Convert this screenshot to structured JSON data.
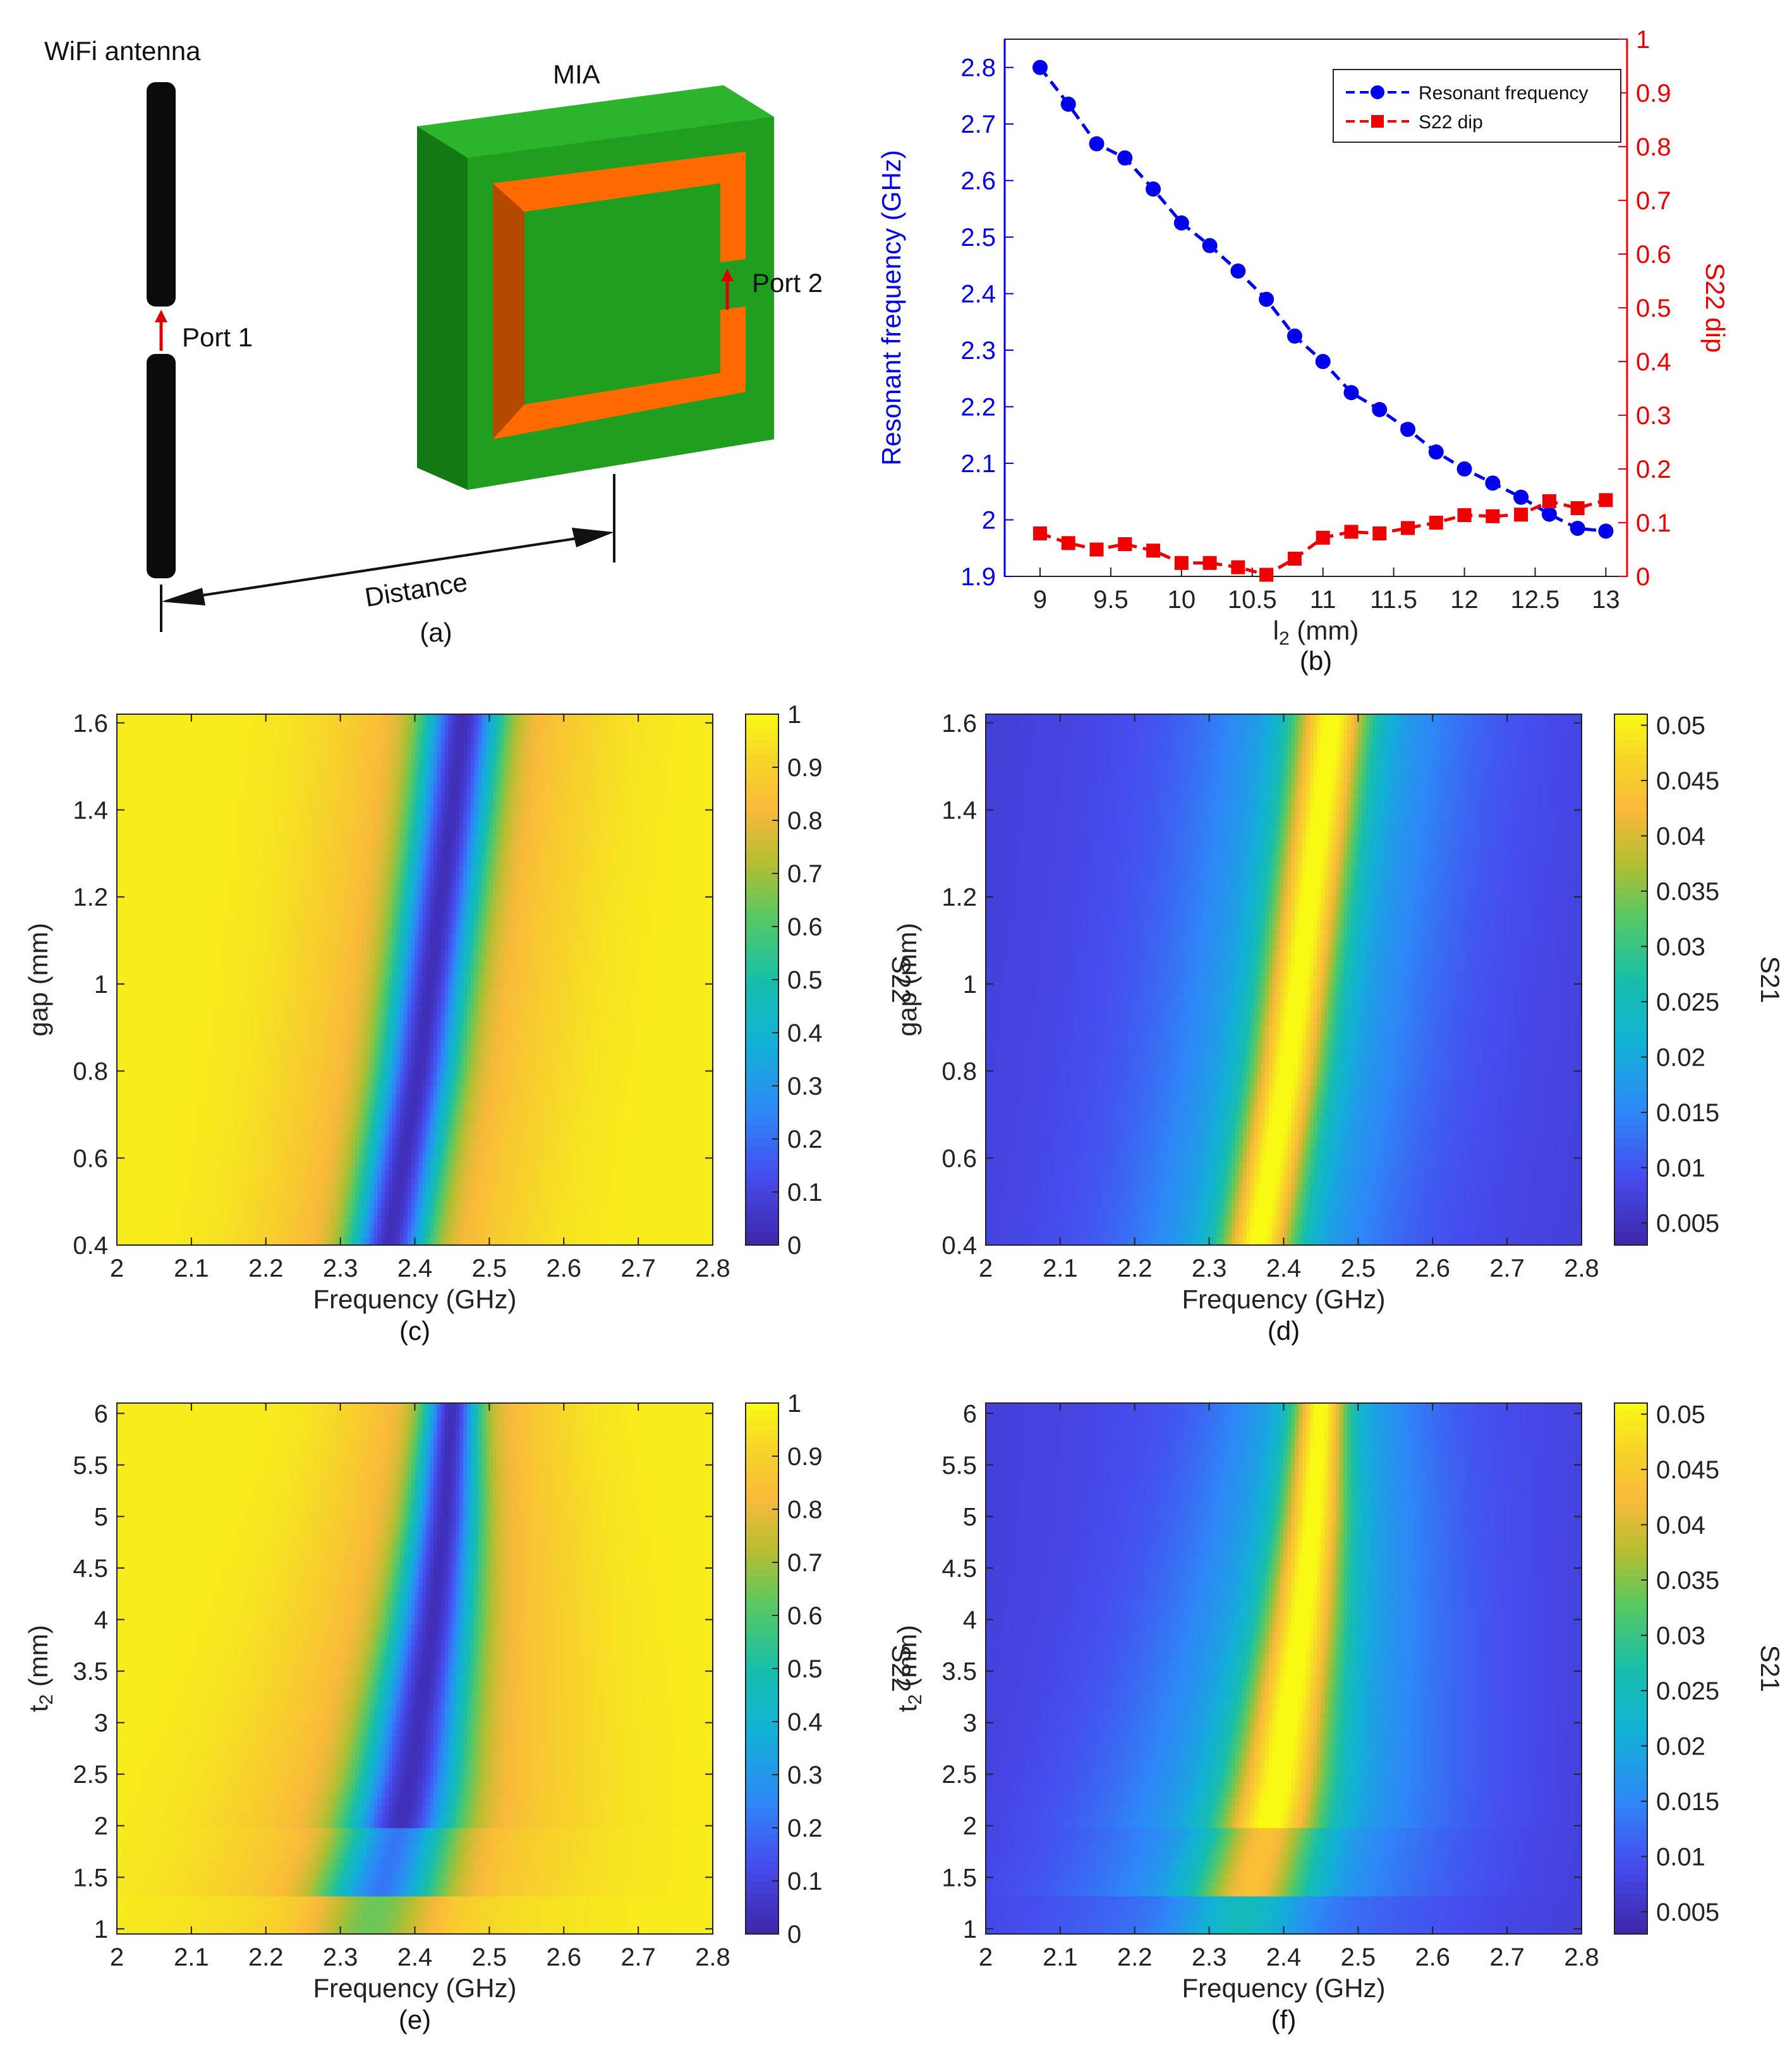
{
  "panel_a": {
    "antenna_label": "WiFi antenna",
    "mia_label": "MIA",
    "port1_label": "Port 1",
    "port2_label": "Port 2",
    "distance_label": "Distance",
    "caption": "(a)",
    "colors": {
      "antenna": "#0a0a0a",
      "substrate": "#1f9e1f",
      "substrate_side": "#0f6e0f",
      "ring": "#ff6a00",
      "ring_side": "#b34a00",
      "port_arrow": "#e00000"
    }
  },
  "chart_data": [
    {
      "id": "b",
      "type": "line",
      "caption": "(b)",
      "x": [
        9,
        9.2,
        9.4,
        9.6,
        9.8,
        10,
        10.2,
        10.4,
        10.6,
        10.8,
        11,
        11.2,
        11.4,
        11.6,
        11.8,
        12,
        12.2,
        12.4,
        12.6,
        12.8,
        13
      ],
      "xlabel_main": "l",
      "xlabel_sub": "2",
      "xlabel_unit": " (mm)",
      "xlim": [
        8.75,
        13.15
      ],
      "xticks": [
        "9",
        "9.5",
        "10",
        "10.5",
        "11",
        "11.5",
        "12",
        "12.5",
        "13"
      ],
      "ylabel_left": "Resonant frequency (GHz)",
      "ylim_left": [
        1.9,
        2.85
      ],
      "yticks_left": [
        "1.9",
        "2",
        "2.1",
        "2.2",
        "2.3",
        "2.4",
        "2.5",
        "2.6",
        "2.7",
        "2.8"
      ],
      "ylabel_right": "S22 dip",
      "ylim_right": [
        0,
        1
      ],
      "yticks_right": [
        "0",
        "0.1",
        "0.2",
        "0.3",
        "0.4",
        "0.5",
        "0.6",
        "0.7",
        "0.8",
        "0.9",
        "1"
      ],
      "legend_position": "top-right",
      "series": [
        {
          "name": "Resonant frequency",
          "axis": "left",
          "color": "#0000ee",
          "marker": "circle",
          "values": [
            2.8,
            2.735,
            2.665,
            2.64,
            2.585,
            2.525,
            2.485,
            2.44,
            2.39,
            2.325,
            2.28,
            2.225,
            2.195,
            2.16,
            2.12,
            2.09,
            2.065,
            2.04,
            2.01,
            1.985,
            1.98
          ]
        },
        {
          "name": "S22 dip",
          "axis": "right",
          "color": "#ee0000",
          "marker": "square",
          "values": [
            0.08,
            0.062,
            0.05,
            0.06,
            0.048,
            0.025,
            0.025,
            0.017,
            0.003,
            0.033,
            0.072,
            0.083,
            0.08,
            0.09,
            0.1,
            0.114,
            0.112,
            0.115,
            0.14,
            0.127,
            0.142
          ]
        }
      ]
    },
    {
      "id": "c",
      "type": "heatmap",
      "caption": "(c)",
      "xlabel": "Frequency (GHz)",
      "ylabel": "gap (mm)",
      "xlim": [
        2,
        2.8
      ],
      "ylim": [
        0.4,
        1.62
      ],
      "xticks": [
        "2",
        "2.1",
        "2.2",
        "2.3",
        "2.4",
        "2.5",
        "2.6",
        "2.7",
        "2.8"
      ],
      "yticks": [
        "0.4",
        "0.6",
        "0.8",
        "1",
        "1.2",
        "1.4",
        "1.6"
      ],
      "colorbar_label": "S22",
      "colorbar_range": [
        0,
        1
      ],
      "colorbar_ticks": [
        "0",
        "0.1",
        "0.2",
        "0.3",
        "0.4",
        "0.5",
        "0.6",
        "0.7",
        "0.8",
        "0.9",
        "1"
      ],
      "resonance_path": [
        [
          0.4,
          2.365
        ],
        [
          0.6,
          2.385
        ],
        [
          0.8,
          2.405
        ],
        [
          1.0,
          2.42
        ],
        [
          1.2,
          2.435
        ],
        [
          1.4,
          2.45
        ],
        [
          1.62,
          2.465
        ]
      ],
      "min_value": 0.02,
      "background_value": 0.97
    },
    {
      "id": "d",
      "type": "heatmap",
      "caption": "(d)",
      "xlabel": "Frequency (GHz)",
      "ylabel": "gap (mm)",
      "xlim": [
        2,
        2.8
      ],
      "ylim": [
        0.4,
        1.62
      ],
      "xticks": [
        "2",
        "2.1",
        "2.2",
        "2.3",
        "2.4",
        "2.5",
        "2.6",
        "2.7",
        "2.8"
      ],
      "yticks": [
        "0.4",
        "0.6",
        "0.8",
        "1",
        "1.2",
        "1.4",
        "1.6"
      ],
      "colorbar_label": "S21",
      "colorbar_range": [
        0.003,
        0.051
      ],
      "colorbar_ticks": [
        "0.005",
        "0.01",
        "0.015",
        "0.02",
        "0.025",
        "0.03",
        "0.035",
        "0.04",
        "0.045",
        "0.05"
      ],
      "resonance_path": [
        [
          0.4,
          2.365
        ],
        [
          0.6,
          2.385
        ],
        [
          0.8,
          2.405
        ],
        [
          1.0,
          2.42
        ],
        [
          1.2,
          2.435
        ],
        [
          1.4,
          2.45
        ],
        [
          1.62,
          2.465
        ]
      ],
      "peak_value": 0.05,
      "background_value": 0.006
    },
    {
      "id": "e",
      "type": "heatmap",
      "caption": "(e)",
      "xlabel": "Frequency (GHz)",
      "ylabel_main": "t",
      "ylabel_sub": "2",
      "ylabel_unit": " (mm)",
      "xlim": [
        2,
        2.8
      ],
      "ylim": [
        0.95,
        6.1
      ],
      "xticks": [
        "2",
        "2.1",
        "2.2",
        "2.3",
        "2.4",
        "2.5",
        "2.6",
        "2.7",
        "2.8"
      ],
      "yticks": [
        "1",
        "1.5",
        "2",
        "2.5",
        "3",
        "3.5",
        "4",
        "4.5",
        "5",
        "5.5",
        "6"
      ],
      "colorbar_label": "S22",
      "colorbar_range": [
        0,
        1
      ],
      "colorbar_ticks": [
        "0",
        "0.1",
        "0.2",
        "0.3",
        "0.4",
        "0.5",
        "0.6",
        "0.7",
        "0.8",
        "0.9",
        "1"
      ],
      "resonance_path": [
        [
          1.0,
          2.34
        ],
        [
          1.5,
          2.36
        ],
        [
          2.0,
          2.38
        ],
        [
          2.5,
          2.395
        ],
        [
          3.0,
          2.405
        ],
        [
          3.5,
          2.415
        ],
        [
          4.0,
          2.425
        ],
        [
          5.0,
          2.44
        ],
        [
          6.1,
          2.45
        ]
      ],
      "min_value": 0.05,
      "background_value": 0.97
    },
    {
      "id": "f",
      "type": "heatmap",
      "caption": "(f)",
      "xlabel": "Frequency (GHz)",
      "ylabel_main": "t",
      "ylabel_sub": "2",
      "ylabel_unit": " (mm)",
      "xlim": [
        2,
        2.8
      ],
      "ylim": [
        0.95,
        6.1
      ],
      "xticks": [
        "2",
        "2.1",
        "2.2",
        "2.3",
        "2.4",
        "2.5",
        "2.6",
        "2.7",
        "2.8"
      ],
      "yticks": [
        "1",
        "1.5",
        "2",
        "2.5",
        "3",
        "3.5",
        "4",
        "4.5",
        "5",
        "5.5",
        "6"
      ],
      "colorbar_label": "S21",
      "colorbar_range": [
        0.003,
        0.051
      ],
      "colorbar_ticks": [
        "0.005",
        "0.01",
        "0.015",
        "0.02",
        "0.025",
        "0.03",
        "0.035",
        "0.04",
        "0.045",
        "0.05"
      ],
      "resonance_path": [
        [
          1.0,
          2.34
        ],
        [
          1.5,
          2.36
        ],
        [
          2.0,
          2.38
        ],
        [
          2.5,
          2.395
        ],
        [
          3.0,
          2.405
        ],
        [
          3.5,
          2.415
        ],
        [
          4.0,
          2.425
        ],
        [
          5.0,
          2.44
        ],
        [
          6.1,
          2.45
        ]
      ],
      "peak_value": 0.05,
      "background_value": 0.006
    }
  ]
}
